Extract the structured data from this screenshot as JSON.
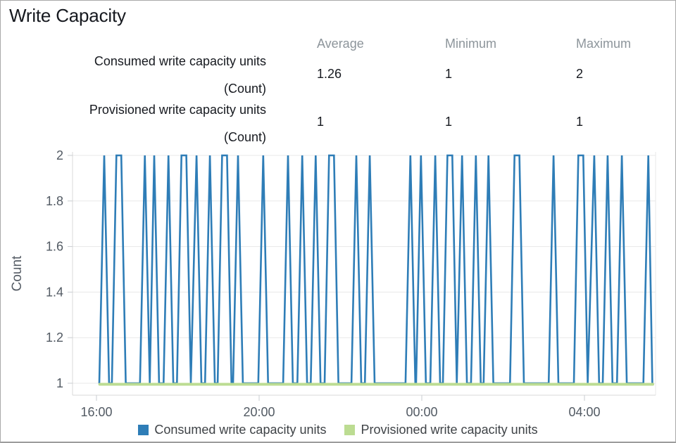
{
  "title": "Write Capacity",
  "stats_table": {
    "columns": [
      "Average",
      "Minimum",
      "Maximum"
    ],
    "rows": [
      {
        "label_line1": "Consumed write capacity units",
        "label_line2": "(Count)",
        "average": "1.26",
        "minimum": "1",
        "maximum": "2"
      },
      {
        "label_line1": "Provisioned write capacity units",
        "label_line2": "(Count)",
        "average": "1",
        "minimum": "1",
        "maximum": "1"
      }
    ]
  },
  "colors": {
    "consumed_blue": "#2e7db7",
    "provisioned_green": "#bcdc92",
    "gridline": "#e8e8e8",
    "axis_line": "#d8d8d8",
    "tick_mark": "#c9cdd1",
    "tick_text": "#525a63",
    "header_gray": "#8d959b",
    "text_dark": "#16191f"
  },
  "chart_data": {
    "type": "line",
    "title": "",
    "ylabel": "Count",
    "ylim": [
      1,
      2
    ],
    "yticks": [
      1,
      1.2,
      1.4,
      1.6,
      1.8,
      2
    ],
    "xlim": [
      15.41,
      29.75
    ],
    "x_unit": "time of day, decimal hours (24 = midnight)",
    "xticks": [
      {
        "value": 16,
        "label": "16:00"
      },
      {
        "value": 20,
        "label": "20:00"
      },
      {
        "value": 24,
        "label": "00:00"
      },
      {
        "value": 28,
        "label": "04:00"
      }
    ],
    "grid": "horizontal",
    "legend_position": "bottom",
    "series": [
      {
        "name": "Consumed write capacity units",
        "color": "#2e7db7",
        "points": [
          [
            16.07,
            1
          ],
          [
            16.19,
            2
          ],
          [
            16.31,
            1
          ],
          [
            16.38,
            1
          ],
          [
            16.49,
            2
          ],
          [
            16.61,
            2
          ],
          [
            16.72,
            1
          ],
          [
            17.07,
            1
          ],
          [
            17.19,
            2
          ],
          [
            17.31,
            1
          ],
          [
            17.42,
            2
          ],
          [
            17.54,
            1
          ],
          [
            17.65,
            1
          ],
          [
            17.77,
            2
          ],
          [
            17.89,
            1
          ],
          [
            17.98,
            1
          ],
          [
            18.09,
            2
          ],
          [
            18.21,
            2
          ],
          [
            18.32,
            1
          ],
          [
            18.46,
            2
          ],
          [
            18.58,
            1
          ],
          [
            18.67,
            1
          ],
          [
            18.79,
            2
          ],
          [
            18.91,
            1
          ],
          [
            18.98,
            1
          ],
          [
            19.09,
            2
          ],
          [
            19.21,
            2
          ],
          [
            19.32,
            1
          ],
          [
            19.36,
            1
          ],
          [
            19.48,
            2
          ],
          [
            19.6,
            1
          ],
          [
            19.98,
            1
          ],
          [
            20.1,
            2
          ],
          [
            20.22,
            1
          ],
          [
            20.59,
            1
          ],
          [
            20.71,
            2
          ],
          [
            20.83,
            1
          ],
          [
            20.94,
            1
          ],
          [
            21.06,
            2
          ],
          [
            21.18,
            1
          ],
          [
            21.27,
            1
          ],
          [
            21.39,
            2
          ],
          [
            21.51,
            1
          ],
          [
            21.61,
            1
          ],
          [
            21.72,
            2
          ],
          [
            21.84,
            2
          ],
          [
            21.95,
            1
          ],
          [
            22.27,
            1
          ],
          [
            22.39,
            2
          ],
          [
            22.51,
            1
          ],
          [
            22.6,
            1
          ],
          [
            22.72,
            2
          ],
          [
            22.84,
            1
          ],
          [
            23.6,
            1
          ],
          [
            23.72,
            2
          ],
          [
            23.84,
            1
          ],
          [
            23.86,
            1
          ],
          [
            23.98,
            2
          ],
          [
            24.1,
            1
          ],
          [
            24.21,
            1
          ],
          [
            24.33,
            2
          ],
          [
            24.45,
            1
          ],
          [
            24.52,
            1
          ],
          [
            24.63,
            2
          ],
          [
            24.75,
            2
          ],
          [
            24.86,
            1
          ],
          [
            24.99,
            2
          ],
          [
            25.11,
            1
          ],
          [
            25.21,
            1
          ],
          [
            25.33,
            2
          ],
          [
            25.45,
            1
          ],
          [
            25.52,
            1
          ],
          [
            25.64,
            2
          ],
          [
            25.76,
            1
          ],
          [
            26.17,
            1
          ],
          [
            26.28,
            2
          ],
          [
            26.4,
            2
          ],
          [
            26.51,
            1
          ],
          [
            27.12,
            1
          ],
          [
            27.24,
            2
          ],
          [
            27.36,
            1
          ],
          [
            27.74,
            1
          ],
          [
            27.85,
            2
          ],
          [
            27.97,
            2
          ],
          [
            28.08,
            1
          ],
          [
            28.24,
            2
          ],
          [
            28.36,
            1
          ],
          [
            28.45,
            1
          ],
          [
            28.57,
            2
          ],
          [
            28.69,
            1
          ],
          [
            28.8,
            1
          ],
          [
            28.92,
            2
          ],
          [
            29.04,
            1
          ],
          [
            29.45,
            1
          ],
          [
            29.57,
            2
          ],
          [
            29.67,
            1
          ]
        ]
      },
      {
        "name": "Provisioned write capacity units",
        "color": "#bcdc92",
        "points": [
          [
            16.08,
            1
          ],
          [
            29.68,
            1
          ]
        ]
      }
    ]
  }
}
